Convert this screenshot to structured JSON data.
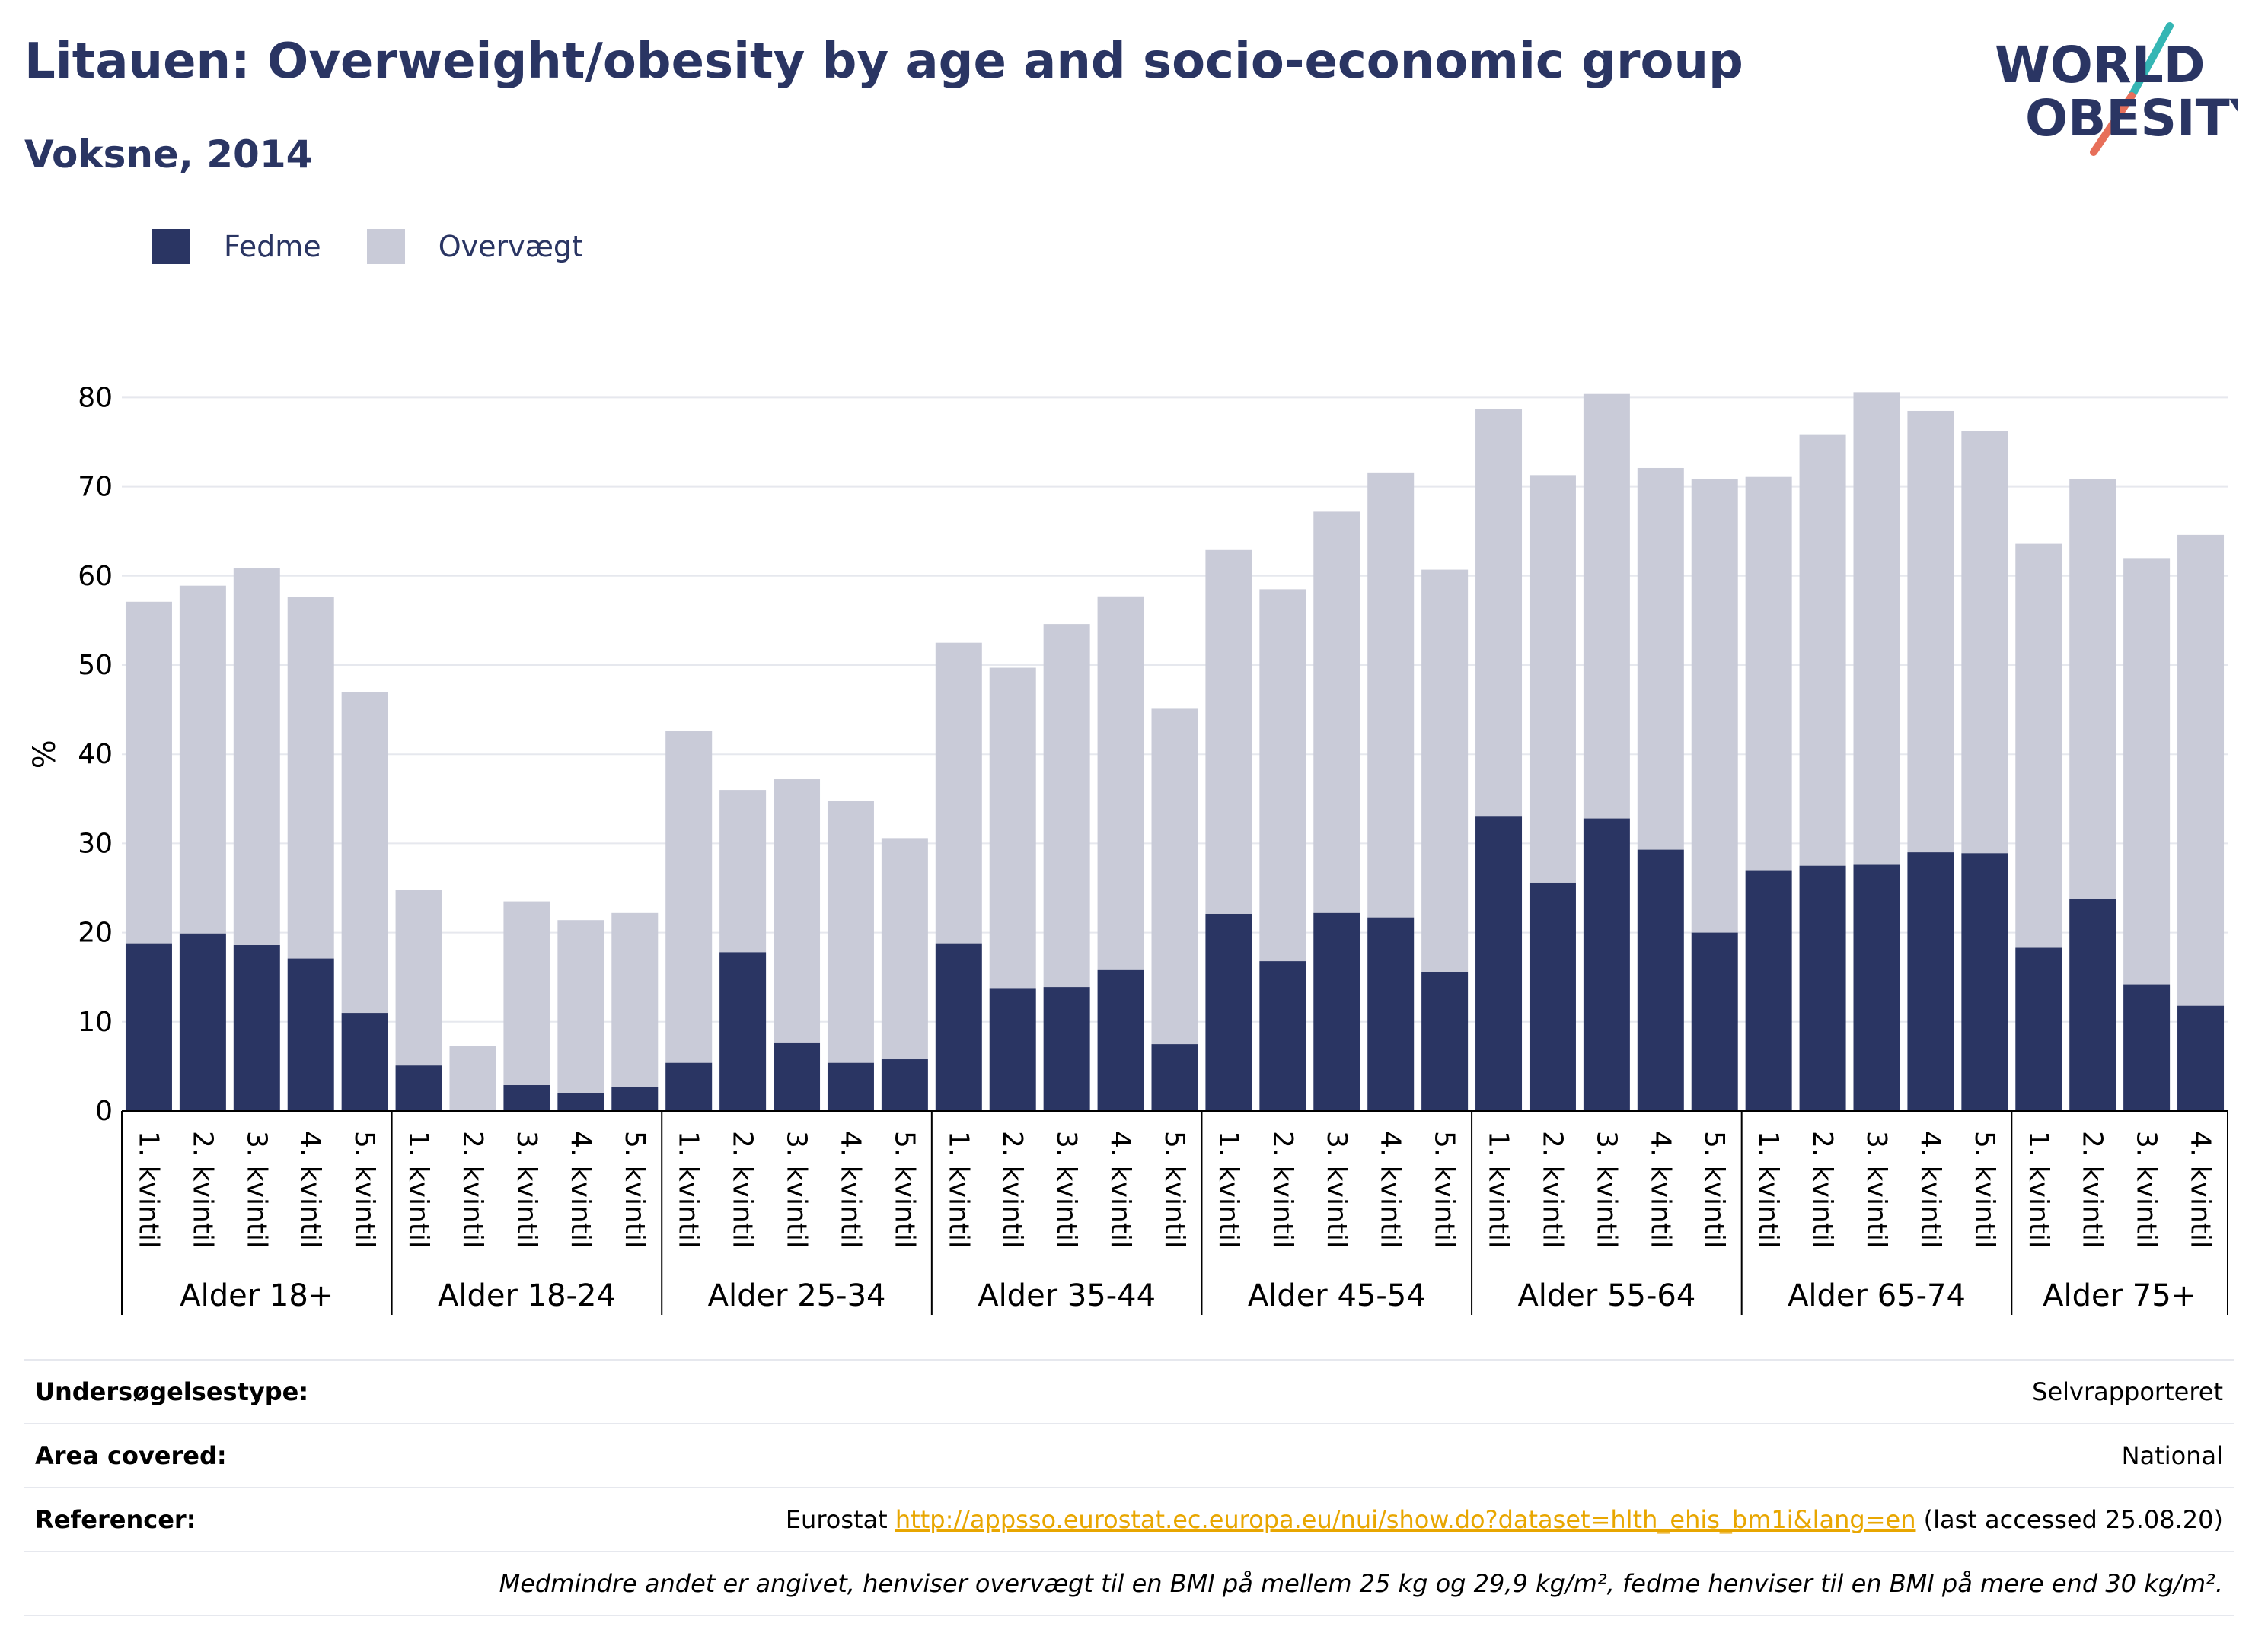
{
  "header": {
    "title": "Litauen: Overweight/obesity by age and socio-economic group",
    "subtitle": "Voksne, 2014"
  },
  "logo": {
    "line1": "WORLD",
    "line2": "OBESITY",
    "slash_colors": [
      "#e76f5a",
      "#35b6b4"
    ]
  },
  "colors": {
    "fedme": "#2a3563",
    "overvaegt": "#c9cbd8",
    "text": "#2a3563",
    "link": "#e8a600"
  },
  "legend": [
    {
      "name": "Fedme",
      "color": "#2a3563"
    },
    {
      "name": "Overvægt",
      "color": "#c9cbd8"
    }
  ],
  "chart_data": {
    "type": "bar",
    "stacked": true,
    "ylabel": "%",
    "ylim": [
      0,
      82
    ],
    "yticks": [
      0,
      10,
      20,
      30,
      40,
      50,
      60,
      70,
      80
    ],
    "grid": true,
    "legend_position": "top-left",
    "groups": [
      {
        "name": "Alder 18+",
        "categories": [
          "1. kvintil",
          "2. kvintil",
          "3. kvintil",
          "4. kvintil",
          "5. kvintil"
        ],
        "fedme": [
          18.8,
          19.9,
          18.6,
          17.1,
          11.0
        ],
        "total": [
          57.1,
          58.9,
          60.9,
          57.6,
          47.0
        ]
      },
      {
        "name": "Alder 18-24",
        "categories": [
          "1. kvintil",
          "2. kvintil",
          "3. kvintil",
          "4. kvintil",
          "5. kvintil"
        ],
        "fedme": [
          5.1,
          0,
          2.9,
          2.0,
          2.7
        ],
        "total": [
          24.8,
          7.3,
          23.5,
          21.4,
          22.2
        ]
      },
      {
        "name": "Alder 25-34",
        "categories": [
          "1. kvintil",
          "2. kvintil",
          "3. kvintil",
          "4. kvintil",
          "5. kvintil"
        ],
        "fedme": [
          5.4,
          17.8,
          7.6,
          5.4,
          5.8
        ],
        "total": [
          42.6,
          36.0,
          37.2,
          34.8,
          30.6
        ]
      },
      {
        "name": "Alder 35-44",
        "categories": [
          "1. kvintil",
          "2. kvintil",
          "3. kvintil",
          "4. kvintil",
          "5. kvintil"
        ],
        "fedme": [
          18.8,
          13.7,
          13.9,
          15.8,
          7.5
        ],
        "total": [
          52.5,
          49.7,
          54.6,
          57.7,
          45.1
        ]
      },
      {
        "name": "Alder 45-54",
        "categories": [
          "1. kvintil",
          "2. kvintil",
          "3. kvintil",
          "4. kvintil",
          "5. kvintil"
        ],
        "fedme": [
          22.1,
          16.8,
          22.2,
          21.7,
          15.6
        ],
        "total": [
          62.9,
          58.5,
          67.2,
          71.6,
          60.7
        ]
      },
      {
        "name": "Alder 55-64",
        "categories": [
          "1. kvintil",
          "2. kvintil",
          "3. kvintil",
          "4. kvintil",
          "5. kvintil"
        ],
        "fedme": [
          33.0,
          25.6,
          32.8,
          29.3,
          20.0
        ],
        "total": [
          78.7,
          71.3,
          80.4,
          72.1,
          70.9
        ]
      },
      {
        "name": "Alder 65-74",
        "categories": [
          "1. kvintil",
          "2. kvintil",
          "3. kvintil",
          "4. kvintil",
          "5. kvintil"
        ],
        "fedme": [
          27.0,
          27.5,
          27.6,
          29.0,
          28.9
        ],
        "total": [
          71.1,
          75.8,
          80.6,
          78.5,
          76.2
        ]
      },
      {
        "name": "Alder 75+",
        "categories": [
          "1. kvintil",
          "2. kvintil",
          "3. kvintil",
          "4. kvintil"
        ],
        "fedme": [
          18.3,
          23.8,
          14.2,
          11.8
        ],
        "total": [
          63.6,
          70.9,
          62.0,
          64.6
        ]
      }
    ]
  },
  "info": {
    "rows": [
      {
        "label": "Undersøgelsestype:",
        "value": "Selvrapporteret"
      },
      {
        "label": "Area covered:",
        "value": "National"
      },
      {
        "label": "Referencer:",
        "value_prefix": "Eurostat ",
        "link": "http://appsso.eurostat.ec.europa.eu/nui/show.do?dataset=hlth_ehis_bm1i&lang=en",
        "value_suffix": " (last accessed 25.08.20)"
      }
    ],
    "note": "Medmindre andet er angivet, henviser overvægt til en BMI på mellem 25 kg og 29,9 kg/m², fedme henviser til en BMI på mere end 30 kg/m²."
  }
}
